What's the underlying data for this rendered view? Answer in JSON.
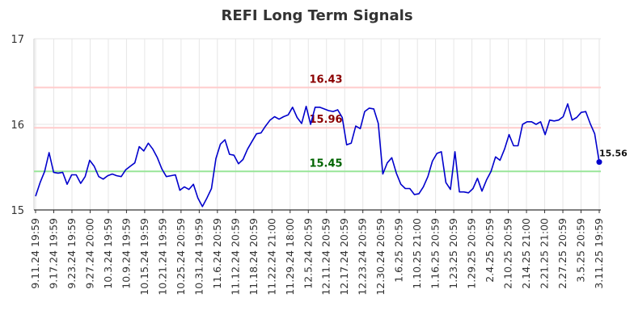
{
  "chart_data": {
    "type": "line",
    "title": "REFI Long Term Signals",
    "ylim": [
      15,
      17
    ],
    "yticks": [
      "15",
      "16",
      "17"
    ],
    "xtick_labels": [
      "9.11.24 19:59",
      "9.17.24 19:59",
      "9.23.24 19:59",
      "9.27.24 20:00",
      "10.3.24 19:59",
      "10.9.24 19:59",
      "10.15.24 19:59",
      "10.21.24 19:59",
      "10.25.24 20:59",
      "10.31.24 19:59",
      "11.6.24 20:59",
      "11.12.24 20:59",
      "11.18.24 20:59",
      "11.22.24 21:00",
      "11.29.24 18:00",
      "12.5.24 20:59",
      "12.11.24 20:59",
      "12.17.24 20:59",
      "12.23.24 20:59",
      "12.30.24 20:59",
      "1.6.25 20:59",
      "1.10.25 21:00",
      "1.16.25 20:59",
      "1.23.25 20:59",
      "1.29.25 20:59",
      "2.4.25 20:59",
      "2.10.25 20:59",
      "2.14.25 21:00",
      "2.21.25 21:00",
      "2.27.25 20:59",
      "3.5.25 20:59",
      "3.11.25 19:59"
    ],
    "grid": true,
    "reference_lines": [
      {
        "label": "16.43",
        "value": 16.43,
        "line_color": "#ffcccc",
        "label_color": "#8b0000"
      },
      {
        "label": "15.96",
        "value": 15.96,
        "line_color": "#ffcccc",
        "label_color": "#8b0000"
      },
      {
        "label": "15.45",
        "value": 15.45,
        "line_color": "#99e699",
        "label_color": "#006400"
      }
    ],
    "series": [
      {
        "color": "#0000cc",
        "values": [
          15.16,
          15.32,
          15.45,
          15.67,
          15.44,
          15.43,
          15.44,
          15.3,
          15.41,
          15.41,
          15.31,
          15.39,
          15.58,
          15.51,
          15.39,
          15.36,
          15.4,
          15.42,
          15.4,
          15.39,
          15.47,
          15.51,
          15.55,
          15.74,
          15.69,
          15.78,
          15.71,
          15.61,
          15.48,
          15.39,
          15.4,
          15.41,
          15.23,
          15.27,
          15.24,
          15.3,
          15.14,
          15.04,
          15.14,
          15.25,
          15.6,
          15.77,
          15.82,
          15.65,
          15.64,
          15.54,
          15.59,
          15.71,
          15.8,
          15.89,
          15.9,
          15.98,
          16.05,
          16.09,
          16.06,
          16.09,
          16.11,
          16.2,
          16.08,
          16.01,
          16.21,
          16.0,
          16.2,
          16.2,
          16.18,
          16.16,
          16.15,
          16.17,
          16.08,
          15.76,
          15.78,
          15.98,
          15.95,
          16.15,
          16.19,
          16.18,
          16.01,
          15.42,
          15.55,
          15.61,
          15.43,
          15.3,
          15.25,
          15.25,
          15.18,
          15.19,
          15.27,
          15.39,
          15.57,
          15.66,
          15.68,
          15.32,
          15.24,
          15.68,
          15.21,
          15.21,
          15.2,
          15.25,
          15.37,
          15.22,
          15.35,
          15.45,
          15.62,
          15.58,
          15.71,
          15.88,
          15.75,
          15.75,
          16.0,
          16.03,
          16.03,
          16.0,
          16.03,
          15.88,
          16.05,
          16.04,
          16.05,
          16.09,
          16.24,
          16.05,
          16.08,
          16.14,
          16.15,
          16.01,
          15.89,
          15.56
        ]
      }
    ],
    "last_value_label": "15.56"
  }
}
